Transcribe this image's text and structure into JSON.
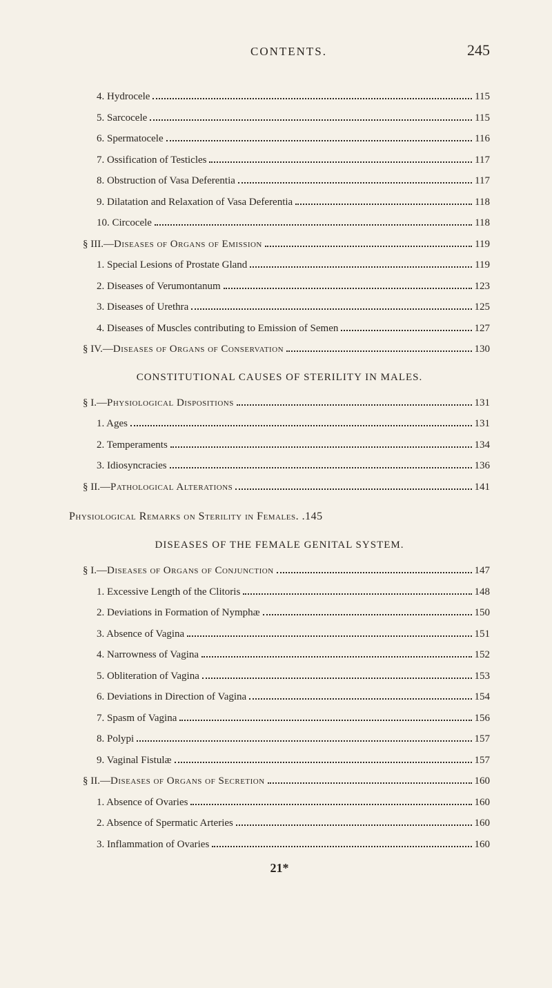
{
  "header": {
    "title": "CONTENTS.",
    "page_number": "245"
  },
  "entries": [
    {
      "indent": 2,
      "label": "4. Hydrocele",
      "page": "115"
    },
    {
      "indent": 2,
      "label": "5. Sarcocele",
      "page": "115"
    },
    {
      "indent": 2,
      "label": "6. Spermatocele",
      "page": "116"
    },
    {
      "indent": 2,
      "label": "7. Ossification of Testicles",
      "page": "117"
    },
    {
      "indent": 2,
      "label": "8. Obstruction of Vasa Deferentia",
      "page": "117"
    },
    {
      "indent": 2,
      "label": "9. Dilatation and Relaxation of Vasa Deferentia",
      "page": "118"
    },
    {
      "indent": 2,
      "label": "10. Circocele",
      "page": "118"
    },
    {
      "indent": 1,
      "label_prefix": "§ III.—",
      "label_caps": "Diseases of Organs of Emission",
      "page": "119"
    },
    {
      "indent": 2,
      "label": "1. Special Lesions of Prostate Gland",
      "page": "119"
    },
    {
      "indent": 2,
      "label": "2. Diseases of Verumontanum",
      "page": "123"
    },
    {
      "indent": 2,
      "label": "3. Diseases of Urethra",
      "page": "125"
    },
    {
      "indent": 2,
      "label": "4. Diseases of Muscles contributing to Emission of Semen",
      "page": "127"
    },
    {
      "indent": 1,
      "label_prefix": "§ IV.—",
      "label_caps": "Diseases of Organs of Conservation",
      "page": "130"
    }
  ],
  "section1": {
    "title": "CONSTITUTIONAL CAUSES OF STERILITY IN MALES."
  },
  "entries2": [
    {
      "indent": 1,
      "label_prefix": "§ I.—",
      "label_caps": "Physiological Dispositions",
      "page": "131"
    },
    {
      "indent": 2,
      "label": "1. Ages",
      "page": "131"
    },
    {
      "indent": 2,
      "label": "2. Temperaments",
      "page": "134"
    },
    {
      "indent": 2,
      "label": "3. Idiosyncracies",
      "page": "136"
    },
    {
      "indent": 1,
      "label_prefix": "§ II.—",
      "label_caps": "Pathological Alterations",
      "page": "141"
    }
  ],
  "chapter1": {
    "prefix": "Physiological Remarks on Sterility in Females",
    "page": "145"
  },
  "section2": {
    "title": "DISEASES OF THE FEMALE GENITAL SYSTEM."
  },
  "entries3": [
    {
      "indent": 1,
      "label_prefix": "§ I.—",
      "label_caps": "Diseases of Organs of Conjunction",
      "page": "147"
    },
    {
      "indent": 2,
      "label": "1. Excessive Length of the Clitoris",
      "page": "148"
    },
    {
      "indent": 2,
      "label": "2. Deviations in Formation of Nymphæ",
      "page": "150"
    },
    {
      "indent": 2,
      "label": "3. Absence of Vagina",
      "page": "151"
    },
    {
      "indent": 2,
      "label": "4. Narrowness of Vagina",
      "page": "152"
    },
    {
      "indent": 2,
      "label": "5. Obliteration of Vagina",
      "page": "153"
    },
    {
      "indent": 2,
      "label": "6. Deviations in Direction of Vagina",
      "page": "154"
    },
    {
      "indent": 2,
      "label": "7. Spasm of Vagina",
      "page": "156"
    },
    {
      "indent": 2,
      "label": "8. Polypi",
      "page": "157"
    },
    {
      "indent": 2,
      "label": "9. Vaginal Fistulæ",
      "page": "157"
    },
    {
      "indent": 1,
      "label_prefix": "§ II.—",
      "label_caps": "Diseases of Organs of Secretion",
      "page": "160"
    },
    {
      "indent": 2,
      "label": "1. Absence of Ovaries",
      "page": "160"
    },
    {
      "indent": 2,
      "label": "2. Absence of Spermatic Arteries",
      "page": "160"
    },
    {
      "indent": 2,
      "label": "3. Inflammation of Ovaries",
      "page": "160"
    }
  ],
  "signature": "21*"
}
